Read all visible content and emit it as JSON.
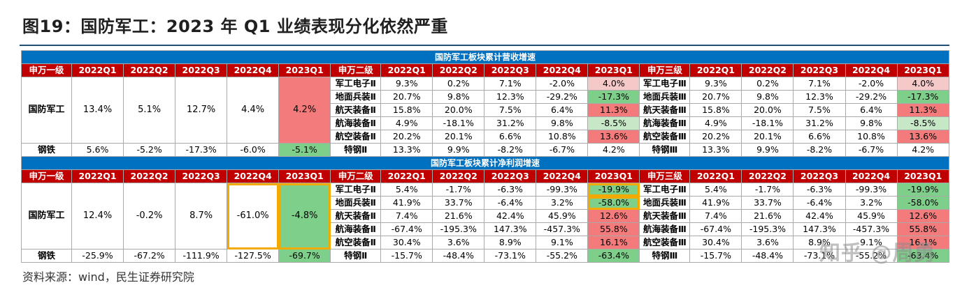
{
  "title": "图19：国防军工：2023 年 Q1 业绩表现分化依然严重",
  "source": "资料来源：wind，民生证券研究院",
  "watermark": "知乎 @周勇",
  "revenue": {
    "title": "国防军工板块累计营收增速",
    "headers_l1": [
      "申万一级",
      "2022Q1",
      "2022Q2",
      "2022Q3",
      "2022Q4",
      "2023Q1"
    ],
    "headers_l2": [
      "申万二级",
      "2022Q1",
      "2022Q2",
      "2022Q3",
      "2022Q4",
      "2023Q1"
    ],
    "headers_l3": [
      "申万三级",
      "2022Q1",
      "2022Q2",
      "2022Q3",
      "2022Q4",
      "2023Q1"
    ],
    "l1_main": {
      "name": "国防军工",
      "values": [
        "13.4%",
        "5.1%",
        "12.7%",
        "4.4%",
        "4.2%"
      ]
    },
    "l2_rows": [
      {
        "name": "军工电子Ⅱ",
        "values": [
          "9.3%",
          "0.2%",
          "7.1%",
          "-2.0%",
          "4.0%"
        ]
      },
      {
        "name": "地面兵装Ⅱ",
        "values": [
          "20.7%",
          "9.8%",
          "12.3%",
          "-29.2%",
          "-17.3%"
        ]
      },
      {
        "name": "航天装备Ⅱ",
        "values": [
          "15.8%",
          "20.0%",
          "7.5%",
          "6.4%",
          "11.3%"
        ]
      },
      {
        "name": "航海装备Ⅱ",
        "values": [
          "4.9%",
          "-18.1%",
          "31.2%",
          "9.8%",
          "-8.5%"
        ]
      },
      {
        "name": "航空装备Ⅱ",
        "values": [
          "20.2%",
          "20.1%",
          "6.6%",
          "10.8%",
          "13.6%"
        ]
      }
    ],
    "l3_rows": [
      {
        "name": "军工电子Ⅲ",
        "values": [
          "9.3%",
          "0.2%",
          "7.1%",
          "-2.0%",
          "4.0%"
        ]
      },
      {
        "name": "地面兵装Ⅲ",
        "values": [
          "20.7%",
          "9.8%",
          "12.3%",
          "-29.2%",
          "-17.3%"
        ]
      },
      {
        "name": "航天装备Ⅲ",
        "values": [
          "15.8%",
          "20.0%",
          "7.5%",
          "6.4%",
          "11.3%"
        ]
      },
      {
        "name": "航海装备Ⅲ",
        "values": [
          "4.9%",
          "-18.1%",
          "31.2%",
          "9.8%",
          "-8.5%"
        ]
      },
      {
        "name": "航空装备Ⅲ",
        "values": [
          "20.2%",
          "20.1%",
          "6.6%",
          "10.8%",
          "13.6%"
        ]
      }
    ],
    "steel": {
      "l1_name": "钢铁",
      "l1_values": [
        "5.6%",
        "-5.2%",
        "-17.3%",
        "-6.0%",
        "-5.1%"
      ],
      "l2_name": "特钢Ⅱ",
      "l2_values": [
        "13.3%",
        "9.9%",
        "-8.2%",
        "-6.7%",
        "4.2%"
      ],
      "l3_name": "特钢Ⅲ",
      "l3_values": [
        "13.3%",
        "9.9%",
        "-8.2%",
        "-6.7%",
        "4.2%"
      ]
    }
  },
  "profit": {
    "title": "国防军工板块累计净利润增速",
    "headers_l1": [
      "申万一级",
      "2022Q1",
      "2022Q2",
      "2022Q3",
      "2022Q4",
      "2023Q1"
    ],
    "headers_l2": [
      "申万二级",
      "2022Q1",
      "2022Q2",
      "2022Q3",
      "2022Q4",
      "2023Q1"
    ],
    "headers_l3": [
      "申万三级",
      "2022Q1",
      "2022Q2",
      "2022Q3",
      "2022Q4",
      "2023Q1"
    ],
    "l1_main": {
      "name": "国防军工",
      "values": [
        "12.4%",
        "-0.2%",
        "8.7%",
        "-61.0%",
        "-4.8%"
      ]
    },
    "l2_rows": [
      {
        "name": "军工电子Ⅱ",
        "values": [
          "5.4%",
          "-1.7%",
          "-6.3%",
          "-99.3%",
          "-19.9%"
        ]
      },
      {
        "name": "地面兵装Ⅱ",
        "values": [
          "41.9%",
          "33.7%",
          "-6.4%",
          "3.2%",
          "-58.0%"
        ]
      },
      {
        "name": "航天装备Ⅱ",
        "values": [
          "7.4%",
          "21.6%",
          "42.4%",
          "45.9%",
          "12.6%"
        ]
      },
      {
        "name": "航海装备Ⅱ",
        "values": [
          "-67.4%",
          "-195.3%",
          "147.3%",
          "-457.3%",
          "55.8%"
        ]
      },
      {
        "name": "航空装备Ⅱ",
        "values": [
          "30.4%",
          "3.6%",
          "8.9%",
          "9.1%",
          "16.1%"
        ]
      }
    ],
    "l3_rows": [
      {
        "name": "军工电子Ⅲ",
        "values": [
          "5.4%",
          "-1.7%",
          "-6.3%",
          "-99.3%",
          "-19.9%"
        ]
      },
      {
        "name": "地面兵装Ⅲ",
        "values": [
          "41.9%",
          "33.7%",
          "-6.4%",
          "3.2%",
          "-58.0%"
        ]
      },
      {
        "name": "航天装备Ⅲ",
        "values": [
          "7.4%",
          "21.6%",
          "42.4%",
          "45.9%",
          "12.6%"
        ]
      },
      {
        "name": "航海装备Ⅲ",
        "values": [
          "-67.4%",
          "-195.3%",
          "147.3%",
          "-457.3%",
          "55.8%"
        ]
      },
      {
        "name": "航空装备Ⅲ",
        "values": [
          "30.4%",
          "3.6%",
          "8.9%",
          "9.1%",
          "16.1%"
        ]
      }
    ],
    "steel": {
      "l1_name": "钢铁",
      "l1_values": [
        "-25.9%",
        "-67.2%",
        "-111.9%",
        "-127.5%",
        "-69.7%"
      ],
      "l2_name": "特钢Ⅱ",
      "l2_values": [
        "-15.7%",
        "-48.4%",
        "-73.1%",
        "-55.2%",
        "-63.4%"
      ],
      "l3_name": "特钢Ⅲ",
      "l3_values": [
        "-15.7%",
        "-48.4%",
        "-73.1%",
        "-55.2%",
        "-63.4%"
      ]
    }
  },
  "colors": {
    "section_bg": "#0070c0",
    "header_bg": "#c00000",
    "negative_strong": "#7ecf8a",
    "negative_light": "#c7e8c7",
    "positive_strong": "#f47b7b",
    "positive_light": "#f6c9c9",
    "highlight_box": "#f2a900"
  }
}
